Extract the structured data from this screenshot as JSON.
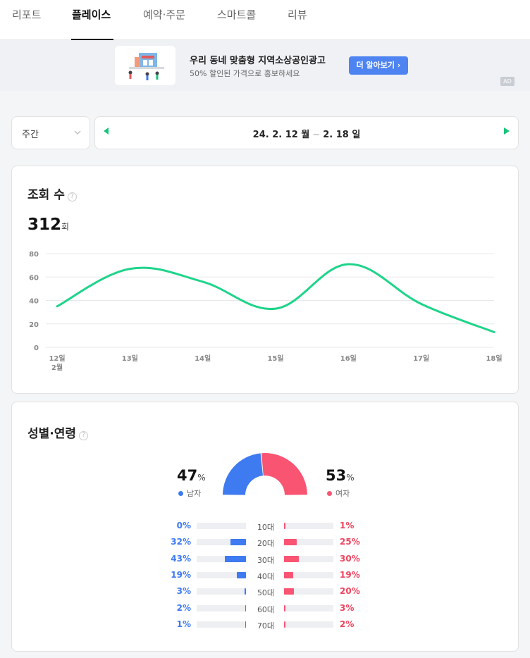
{
  "tabs": [
    {
      "label": "리포트",
      "active": false
    },
    {
      "label": "플레이스",
      "active": true
    },
    {
      "label": "예약·주문",
      "active": false
    },
    {
      "label": "스마트콜",
      "active": false
    },
    {
      "label": "리뷰",
      "active": false
    }
  ],
  "ad": {
    "title": "우리 동네 맞춤형 지역소상공인광고",
    "subtitle": "50% 할인된 가격으로 홍보하세요",
    "button": "더 알아보기 ›",
    "badge": "AD"
  },
  "period": {
    "selected": "주간"
  },
  "date_range": {
    "start": "24. 2. 12 월",
    "separator": "~",
    "end": "2. 18 일"
  },
  "views": {
    "title": "조회 수",
    "total": "312",
    "unit": "회"
  },
  "chart_data": {
    "type": "line",
    "title": "",
    "xlabel": "",
    "ylabel": "",
    "categories": [
      "12일",
      "13일",
      "14일",
      "15일",
      "16일",
      "17일",
      "18일"
    ],
    "category_sublabel": "2월",
    "series": [
      {
        "values": [
          35,
          67,
          56,
          33,
          71,
          37,
          13
        ]
      }
    ],
    "ylim": [
      0,
      80
    ],
    "yticks": [
      0,
      20,
      40,
      60,
      80
    ],
    "grid": true,
    "colors": {
      "line": "#1ed48a",
      "grid": "#e8e8e8"
    }
  },
  "gender": {
    "title": "성별·연령",
    "male": {
      "pct": "47",
      "unit": "%",
      "label": "남자",
      "value": 47,
      "color": "#3e7af0"
    },
    "female": {
      "pct": "53",
      "unit": "%",
      "label": "여자",
      "value": 53,
      "color": "#fa5473"
    }
  },
  "age_rows": [
    {
      "label": "10대",
      "male": "0%",
      "female": "1%",
      "male_frac": 0.0,
      "female_frac": 0.01
    },
    {
      "label": "20대",
      "male": "32%",
      "female": "25%",
      "male_frac": 0.32,
      "female_frac": 0.25
    },
    {
      "label": "30대",
      "male": "43%",
      "female": "30%",
      "male_frac": 0.43,
      "female_frac": 0.3
    },
    {
      "label": "40대",
      "male": "19%",
      "female": "19%",
      "male_frac": 0.19,
      "female_frac": 0.19
    },
    {
      "label": "50대",
      "male": "3%",
      "female": "20%",
      "male_frac": 0.03,
      "female_frac": 0.2
    },
    {
      "label": "60대",
      "male": "2%",
      "female": "3%",
      "male_frac": 0.02,
      "female_frac": 0.03
    },
    {
      "label": "70대",
      "male": "1%",
      "female": "2%",
      "male_frac": 0.01,
      "female_frac": 0.02
    }
  ]
}
